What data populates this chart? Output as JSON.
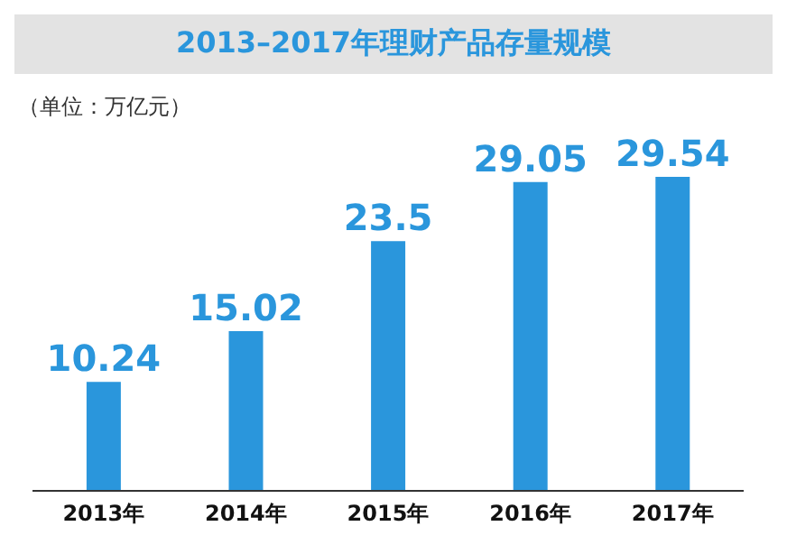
{
  "chart_data": {
    "type": "bar",
    "title": "2013–2017年理财产品存量规模",
    "subtitle": "（单位：万亿元）",
    "categories": [
      "2013年",
      "2014年",
      "2015年",
      "2016年",
      "2017年"
    ],
    "values": [
      10.24,
      15.02,
      23.5,
      29.05,
      29.54
    ],
    "color": "#2a96dc",
    "data_labels": true
  }
}
